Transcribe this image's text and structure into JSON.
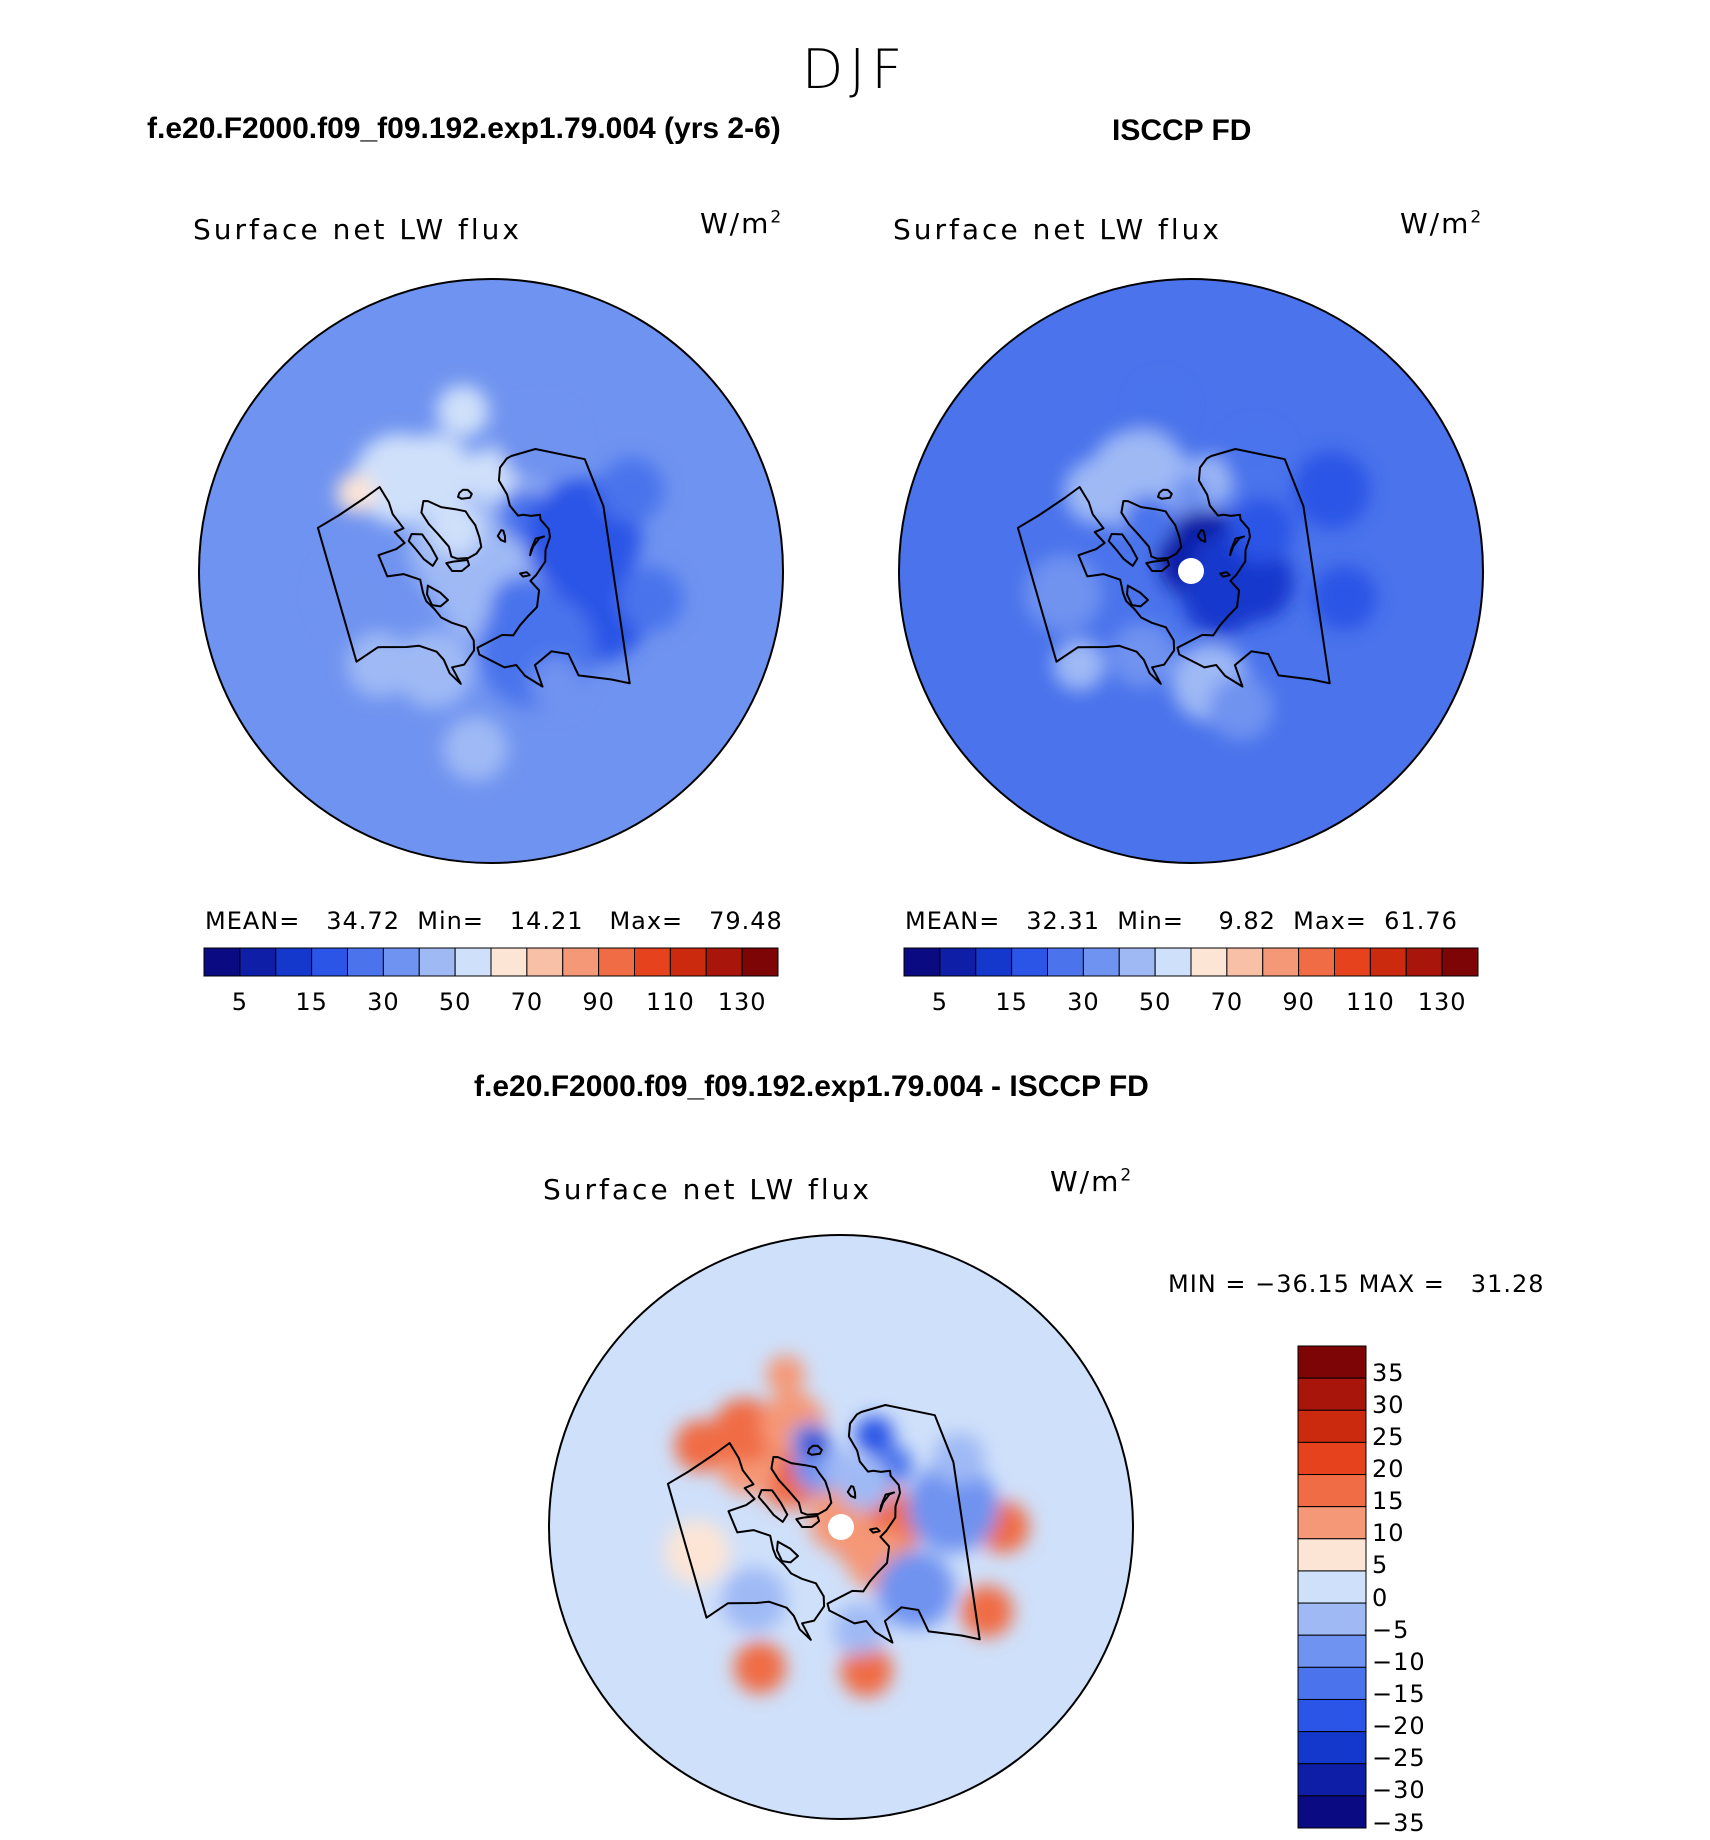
{
  "season": "DJF",
  "variable": "Surface net LW flux",
  "unit_base": "W/m",
  "unit_exp": "2",
  "chart_data": [
    {
      "type": "heatmap",
      "title": "f.e20.F2000.f09_f09.192.exp1.79.004 (yrs 2-6)",
      "subtitle": "Surface net LW flux",
      "unit": "W/m2",
      "stats": {
        "mean_label": "MEAN=",
        "mean": "34.72",
        "min_label": "Min=",
        "min": "14.21",
        "max_label": "Max=",
        "max": "79.48"
      },
      "colorbar_ticks": [
        "5",
        "15",
        "30",
        "50",
        "70",
        "90",
        "110",
        "130"
      ],
      "legend_placement": "bottom",
      "field": "model",
      "has_missing_pole": false
    },
    {
      "type": "heatmap",
      "title": "ISCCP FD",
      "subtitle": "Surface net LW flux",
      "unit": "W/m2",
      "stats": {
        "mean_label": "MEAN=",
        "mean": "32.31",
        "min_label": "Min=",
        "min": "9.82",
        "max_label": "Max=",
        "max": "61.76"
      },
      "colorbar_ticks": [
        "5",
        "15",
        "30",
        "50",
        "70",
        "90",
        "110",
        "130"
      ],
      "legend_placement": "bottom",
      "field": "obs",
      "has_missing_pole": true
    },
    {
      "type": "heatmap",
      "title": "f.e20.F2000.f09_f09.192.exp1.79.004 - ISCCP FD",
      "subtitle": "Surface net LW flux",
      "unit": "W/m2",
      "stats": {
        "min_label": "MIN =",
        "min": "−36.15",
        "max_label": "MAX =",
        "max": "31.28"
      },
      "colorbar_ticks": [
        "35",
        "30",
        "25",
        "20",
        "15",
        "10",
        "5",
        "0",
        "−5",
        "−10",
        "−15",
        "−20",
        "−25",
        "−30",
        "−35"
      ],
      "legend_placement": "right",
      "field": "diff",
      "has_missing_pole": true
    }
  ],
  "colors": {
    "abs_scale": [
      "#0a0a82",
      "#0e1ea6",
      "#1538cc",
      "#2b55e6",
      "#4a73ec",
      "#6f93f0",
      "#9fb9f5",
      "#cfe0fa",
      "#fde5d6",
      "#f9c0a8",
      "#f59877",
      "#f06c45",
      "#e6421e",
      "#cc2a0e",
      "#a8150a",
      "#7e0505"
    ],
    "diff_scale": [
      "#7e0505",
      "#a8150a",
      "#cc2a0e",
      "#e6421e",
      "#f06c45",
      "#f59877",
      "#fde5d6",
      "#cfe0fa",
      "#9fb9f5",
      "#6f93f0",
      "#4a73ec",
      "#2b55e6",
      "#1538cc",
      "#0e1ea6",
      "#0a0a82"
    ]
  }
}
